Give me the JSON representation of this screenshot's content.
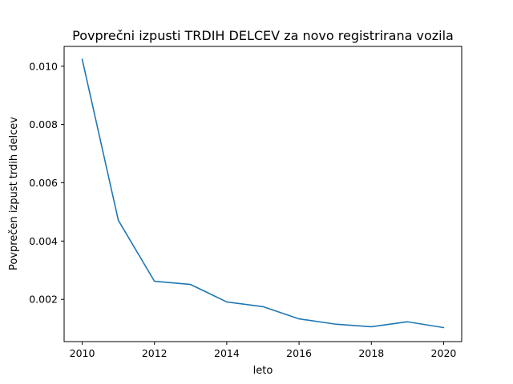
{
  "chart_data": {
    "type": "line",
    "title": "Povprečni izpusti TRDIH DELCEV za novo registrirana vozila",
    "xlabel": "leto",
    "ylabel": "Povprečen izpust trdih delcev",
    "xlim": [
      2009.5,
      2020.5
    ],
    "ylim": [
      0.00055,
      0.01068
    ],
    "x_ticks": [
      2010,
      2012,
      2014,
      2016,
      2018,
      2020
    ],
    "x_tick_labels": [
      "2010",
      "2012",
      "2014",
      "2016",
      "2018",
      "2020"
    ],
    "y_ticks": [
      0.002,
      0.004,
      0.006,
      0.008,
      0.01
    ],
    "y_tick_labels": [
      "0.002",
      "0.004",
      "0.006",
      "0.008",
      "0.010"
    ],
    "grid": false,
    "series": [
      {
        "color": "#1f77b4",
        "x": [
          2010,
          2011,
          2012,
          2013,
          2014,
          2015,
          2016,
          2017,
          2018,
          2019,
          2020
        ],
        "values": [
          0.01024,
          0.00471,
          0.00262,
          0.00251,
          0.00191,
          0.00175,
          0.00133,
          0.00115,
          0.00106,
          0.00123,
          0.00103
        ]
      }
    ]
  }
}
